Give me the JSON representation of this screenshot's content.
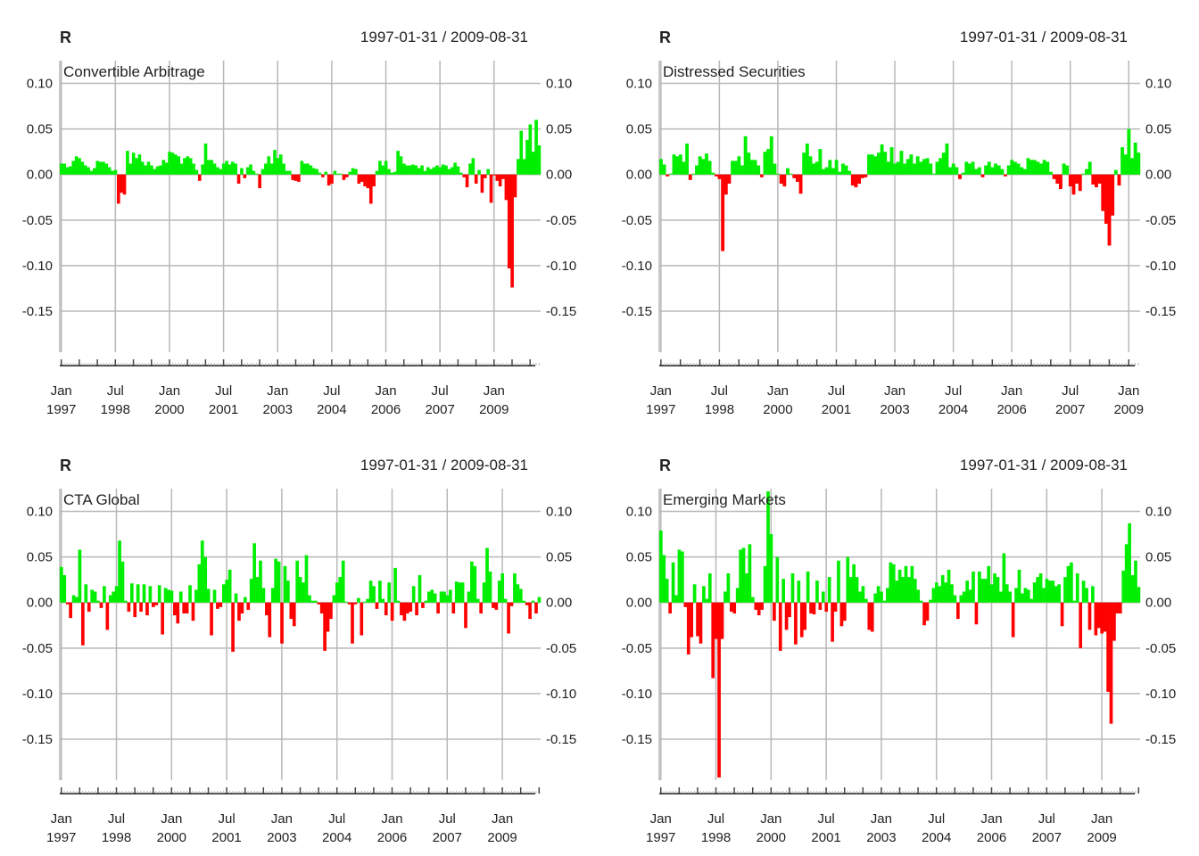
{
  "chart_data": [
    {
      "type": "bar",
      "title": "R",
      "date_range": "1997-01-31 / 2009-08-31",
      "series_name": "Convertible Arbitrage",
      "ylim": [
        -0.195,
        0.125
      ],
      "y_ticks": [
        0.1,
        0.05,
        0.0,
        -0.05,
        -0.1,
        -0.15
      ],
      "y_tick_labels": [
        "0.10",
        "0.05",
        "0.00",
        "-0.05",
        "-0.10",
        "-0.15"
      ],
      "x_tick_labels": [
        {
          "month": "Jan",
          "year": "1997"
        },
        {
          "month": "Jul",
          "year": "1998"
        },
        {
          "month": "Jan",
          "year": "2000"
        },
        {
          "month": "Jul",
          "year": "2001"
        },
        {
          "month": "Jan",
          "year": "2003"
        },
        {
          "month": "Jul",
          "year": "2004"
        },
        {
          "month": "Jan",
          "year": "2006"
        },
        {
          "month": "Jul",
          "year": "2007"
        },
        {
          "month": "Jan",
          "year": "2009"
        }
      ],
      "start": "1997-01",
      "end": "2009-08",
      "values": [
        0.012,
        0.012,
        0.008,
        0.009,
        0.015,
        0.02,
        0.018,
        0.014,
        0.01,
        0.008,
        0.004,
        0.007,
        0.015,
        0.014,
        0.014,
        0.012,
        0.008,
        0.004,
        0.005,
        -0.032,
        -0.02,
        -0.022,
        0.026,
        0.012,
        0.024,
        0.018,
        0.022,
        0.014,
        0.01,
        0.014,
        0.01,
        0.006,
        0.009,
        0.01,
        0.016,
        0.013,
        0.025,
        0.024,
        0.022,
        0.02,
        0.012,
        0.018,
        0.02,
        0.018,
        0.012,
        0.005,
        -0.007,
        0.011,
        0.034,
        0.016,
        0.016,
        0.012,
        0.008,
        0.006,
        0.012,
        0.015,
        0.011,
        0.014,
        0.012,
        -0.01,
        0.007,
        -0.004,
        0.008,
        0.011,
        0.004,
        0.001,
        -0.015,
        0.006,
        0.012,
        0.02,
        0.012,
        0.027,
        0.018,
        0.022,
        0.012,
        0.004,
        0.004,
        -0.006,
        -0.007,
        -0.008,
        0.015,
        0.012,
        0.012,
        0.01,
        0.007,
        0.006,
        0.002,
        -0.003,
        0.003,
        -0.012,
        -0.01,
        0.004,
        0.001,
        0.001,
        -0.006,
        -0.003,
        0.003,
        0.007,
        0.006,
        -0.01,
        -0.008,
        -0.013,
        -0.015,
        -0.032,
        -0.013,
        0.004,
        0.015,
        0.01,
        0.015,
        0.006,
        0.002,
        0.003,
        0.026,
        0.02,
        0.012,
        0.01,
        0.01,
        0.011,
        0.01,
        0.007,
        0.01,
        0.004,
        0.008,
        0.006,
        0.008,
        0.01,
        0.008,
        0.011,
        0.01,
        0.006,
        0.008,
        0.013,
        0.009,
        0.002,
        -0.003,
        -0.014,
        0.012,
        0.018,
        -0.01,
        0.005,
        -0.02,
        -0.004,
        0.006,
        -0.031,
        -0.001,
        -0.007,
        -0.013,
        -0.005,
        -0.028,
        -0.103,
        -0.124,
        -0.025,
        0.017,
        0.048,
        0.017,
        0.038,
        0.055,
        0.025,
        0.06,
        0.032
      ]
    },
    {
      "type": "bar",
      "title": "R",
      "date_range": "1997-01-31 / 2009-08-31",
      "series_name": "Distressed Securities",
      "ylim": [
        -0.195,
        0.125
      ],
      "y_ticks": [
        0.1,
        0.05,
        0.0,
        -0.05,
        -0.1,
        -0.15
      ],
      "y_tick_labels": [
        "0.10",
        "0.05",
        "0.00",
        "-0.05",
        "-0.10",
        "-0.15"
      ],
      "x_tick_labels": [
        {
          "month": "Jan",
          "year": "1997"
        },
        {
          "month": "Jul",
          "year": "1998"
        },
        {
          "month": "Jan",
          "year": "2000"
        },
        {
          "month": "Jul",
          "year": "2001"
        },
        {
          "month": "Jan",
          "year": "2003"
        },
        {
          "month": "Jul",
          "year": "2004"
        },
        {
          "month": "Jan",
          "year": "2006"
        },
        {
          "month": "Jul",
          "year": "2007"
        },
        {
          "month": "Jan",
          "year": "2009"
        }
      ],
      "start": "1997-01",
      "end": "2009-08",
      "values": [
        0.017,
        0.011,
        -0.002,
        0.001,
        0.022,
        0.02,
        0.022,
        0.014,
        0.034,
        -0.006,
        0.001,
        0.01,
        0.02,
        0.017,
        0.023,
        0.015,
        0.002,
        -0.002,
        -0.005,
        -0.084,
        -0.022,
        -0.01,
        0.015,
        0.015,
        0.02,
        0.01,
        0.042,
        0.024,
        0.016,
        0.016,
        0.01,
        -0.003,
        0.025,
        0.028,
        0.042,
        0.012,
        0.001,
        -0.01,
        -0.013,
        0.007,
        0.001,
        -0.004,
        -0.008,
        -0.021,
        0.024,
        0.034,
        0.02,
        0.012,
        0.014,
        0.028,
        0.006,
        0.008,
        0.016,
        0.007,
        0.016,
        0.003,
        0.012,
        0.01,
        0.004,
        -0.012,
        -0.014,
        -0.01,
        -0.004,
        -0.003,
        0.022,
        0.022,
        0.02,
        0.024,
        0.033,
        0.025,
        0.014,
        0.03,
        0.012,
        0.014,
        0.026,
        0.012,
        0.017,
        0.022,
        0.012,
        0.02,
        0.014,
        0.017,
        0.018,
        0.012,
        0.001,
        0.014,
        0.018,
        0.024,
        0.034,
        0.008,
        0.012,
        0.008,
        -0.005,
        0.002,
        0.014,
        0.012,
        0.014,
        0.006,
        0.008,
        -0.003,
        0.01,
        0.014,
        0.008,
        0.012,
        0.01,
        0.006,
        -0.002,
        0.01,
        0.016,
        0.014,
        0.012,
        0.008,
        0.006,
        0.018,
        0.016,
        0.016,
        0.014,
        0.012,
        0.016,
        0.014,
        0.003,
        -0.005,
        -0.01,
        -0.016,
        0.012,
        0.01,
        -0.013,
        -0.022,
        -0.01,
        -0.018,
        0.001,
        0.006,
        0.014,
        -0.011,
        -0.014,
        -0.01,
        -0.04,
        -0.054,
        -0.078,
        -0.045,
        0.005,
        -0.012,
        0.03,
        0.022,
        0.05,
        0.018,
        0.035,
        0.024
      ]
    },
    {
      "type": "bar",
      "title": "R",
      "date_range": "1997-01-31 / 2009-08-31",
      "series_name": "CTA Global",
      "ylim": [
        -0.195,
        0.125
      ],
      "y_ticks": [
        0.1,
        0.05,
        0.0,
        -0.05,
        -0.1,
        -0.15
      ],
      "y_tick_labels": [
        "0.10",
        "0.05",
        "0.00",
        "-0.05",
        "-0.10",
        "-0.15"
      ],
      "x_tick_labels": [
        {
          "month": "Jan",
          "year": "1997"
        },
        {
          "month": "Jul",
          "year": "1998"
        },
        {
          "month": "Jan",
          "year": "2000"
        },
        {
          "month": "Jul",
          "year": "2001"
        },
        {
          "month": "Jan",
          "year": "2003"
        },
        {
          "month": "Jul",
          "year": "2004"
        },
        {
          "month": "Jan",
          "year": "2006"
        },
        {
          "month": "Jul",
          "year": "2007"
        },
        {
          "month": "Jan",
          "year": "2009"
        }
      ],
      "start": "1997-01",
      "end": "2009-08",
      "values": [
        0.039,
        0.03,
        -0.002,
        -0.017,
        0.008,
        0.006,
        0.058,
        -0.047,
        0.02,
        -0.01,
        0.014,
        0.012,
        0.002,
        -0.006,
        0.018,
        -0.03,
        0.008,
        0.012,
        0.018,
        0.068,
        0.045,
        0.002,
        -0.01,
        0.021,
        -0.016,
        0.02,
        -0.01,
        0.02,
        -0.014,
        0.018,
        -0.005,
        -0.003,
        0.019,
        -0.035,
        0.016,
        0.014,
        0.013,
        -0.014,
        -0.023,
        0.012,
        -0.012,
        -0.012,
        0.019,
        -0.02,
        0.014,
        0.042,
        0.068,
        0.05,
        0.015,
        -0.036,
        0.014,
        -0.007,
        -0.005,
        0.02,
        0.025,
        0.036,
        -0.054,
        0.01,
        -0.02,
        -0.012,
        0.006,
        -0.008,
        0.026,
        0.065,
        0.028,
        0.046,
        0.016,
        -0.014,
        -0.038,
        0.016,
        0.048,
        0.045,
        -0.045,
        0.04,
        0.024,
        -0.018,
        -0.026,
        0.046,
        0.028,
        0.022,
        0.052,
        0.008,
        0.002,
        0.002,
        -0.002,
        -0.012,
        -0.053,
        -0.032,
        -0.018,
        0.008,
        0.022,
        0.028,
        0.046,
        0.001,
        -0.002,
        -0.045,
        -0.002,
        0.005,
        -0.036,
        0.001,
        0.004,
        0.024,
        0.018,
        -0.007,
        0.024,
        0.004,
        -0.014,
        0.022,
        -0.02,
        0.038,
        0.002,
        -0.014,
        -0.02,
        -0.012,
        -0.01,
        0.018,
        -0.014,
        0.03,
        -0.006,
        0.002,
        0.012,
        0.014,
        0.01,
        -0.012,
        0.012,
        0.012,
        0.008,
        0.014,
        -0.012,
        0.023,
        0.022,
        0.022,
        -0.028,
        0.012,
        0.045,
        0.04,
        0.004,
        -0.012,
        0.022,
        0.06,
        0.034,
        -0.006,
        -0.008,
        0.024,
        0.032,
        0.004,
        -0.034,
        -0.004,
        0.032,
        0.02,
        0.015,
        0.002,
        -0.003,
        -0.018,
        0.002,
        -0.012,
        0.006
      ]
    },
    {
      "type": "bar",
      "title": "R",
      "date_range": "1997-01-31 / 2009-08-31",
      "series_name": "Emerging Markets",
      "ylim": [
        -0.195,
        0.125
      ],
      "y_ticks": [
        0.1,
        0.05,
        0.0,
        -0.05,
        -0.1,
        -0.15
      ],
      "y_tick_labels": [
        "0.10",
        "0.05",
        "0.00",
        "-0.05",
        "-0.10",
        "-0.15"
      ],
      "x_tick_labels": [
        {
          "month": "Jan",
          "year": "1997"
        },
        {
          "month": "Jul",
          "year": "1998"
        },
        {
          "month": "Jan",
          "year": "2000"
        },
        {
          "month": "Jul",
          "year": "2001"
        },
        {
          "month": "Jan",
          "year": "2003"
        },
        {
          "month": "Jul",
          "year": "2004"
        },
        {
          "month": "Jan",
          "year": "2006"
        },
        {
          "month": "Jul",
          "year": "2007"
        },
        {
          "month": "Jan",
          "year": "2009"
        }
      ],
      "start": "1997-01",
      "end": "2009-08",
      "values": [
        0.079,
        0.052,
        0.026,
        -0.012,
        0.044,
        0.008,
        0.058,
        0.056,
        -0.005,
        -0.057,
        -0.038,
        0.02,
        -0.037,
        -0.045,
        0.018,
        0.004,
        0.032,
        -0.083,
        -0.04,
        -0.192,
        -0.04,
        0.012,
        0.032,
        -0.01,
        -0.012,
        0.016,
        0.058,
        0.06,
        0.032,
        0.064,
        0.006,
        -0.008,
        -0.014,
        -0.008,
        0.04,
        0.122,
        0.075,
        -0.02,
        0.05,
        -0.053,
        0.026,
        -0.03,
        -0.016,
        0.032,
        -0.046,
        0.024,
        -0.038,
        -0.03,
        0.034,
        -0.012,
        -0.013,
        0.024,
        -0.008,
        0.012,
        -0.01,
        0.028,
        -0.043,
        -0.01,
        0.046,
        -0.026,
        -0.02,
        0.05,
        0.028,
        0.042,
        0.028,
        0.012,
        0.018,
        0.004,
        -0.03,
        -0.032,
        0.01,
        0.018,
        0.012,
        0.002,
        0.016,
        0.044,
        0.042,
        0.024,
        0.036,
        0.028,
        0.04,
        0.028,
        0.04,
        0.026,
        0.014,
        0.002,
        -0.025,
        -0.02,
        0.003,
        0.016,
        0.022,
        0.018,
        0.03,
        0.022,
        0.036,
        0.02,
        0.008,
        -0.018,
        0.008,
        0.012,
        0.024,
        0.014,
        0.034,
        -0.024,
        0.034,
        0.026,
        0.026,
        0.04,
        0.02,
        0.032,
        0.028,
        0.012,
        0.054,
        0.02,
        0.012,
        -0.038,
        0.016,
        0.036,
        0.01,
        0.016,
        0.014,
        0.004,
        0.022,
        0.028,
        0.032,
        0.016,
        0.026,
        0.024,
        0.024,
        0.018,
        0.02,
        -0.026,
        0.028,
        0.04,
        0.044,
        0.002,
        0.032,
        -0.05,
        0.024,
        0.016,
        -0.03,
        0.018,
        -0.036,
        -0.028,
        -0.034,
        -0.032,
        -0.098,
        -0.133,
        -0.042,
        -0.012,
        -0.012,
        0.035,
        0.064,
        0.087,
        0.03,
        0.046,
        0.017
      ]
    }
  ],
  "colors": {
    "positive": "#00ee00",
    "negative": "#ff0000",
    "grid": "#b8b8b8",
    "text": "#222222",
    "axis": "#444444"
  }
}
